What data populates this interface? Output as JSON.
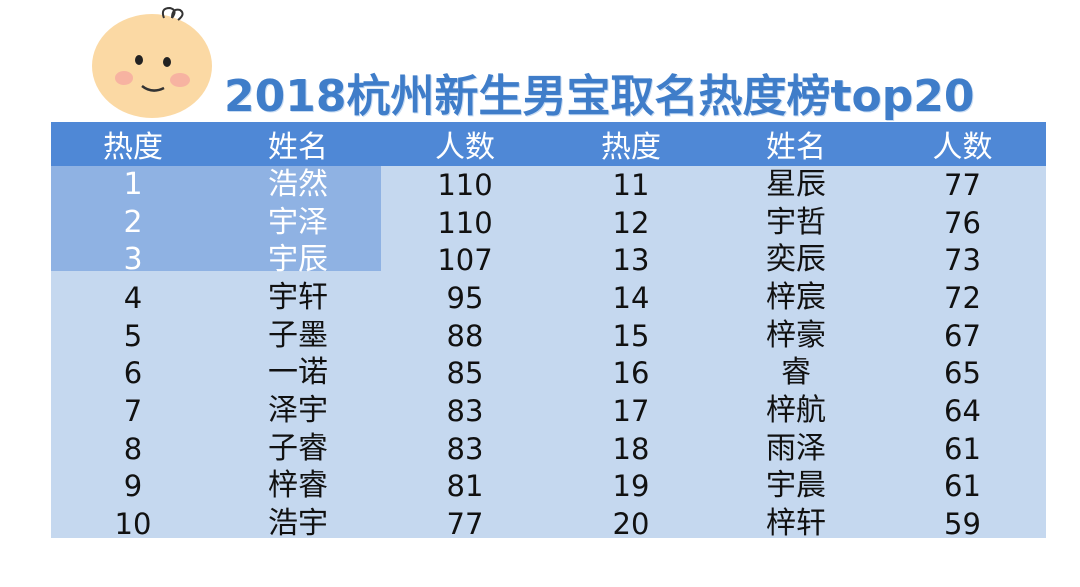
{
  "title": "2018杭州新生男宝取名热度榜top20",
  "logo_icon": "baby-face-icon",
  "colors": {
    "header_bg": "#4f88d6",
    "row_bg": "#c5d8ef",
    "highlight_bg": "#8fb2e3",
    "title": "#3f7dc9"
  },
  "table": {
    "headers": [
      "热度",
      "姓名",
      "人数",
      "热度",
      "姓名",
      "人数"
    ],
    "rows": [
      {
        "r1": "1",
        "n1": "浩然",
        "c1": "110",
        "r2": "11",
        "n2": "星辰",
        "c2": "77"
      },
      {
        "r1": "2",
        "n1": "宇泽",
        "c1": "110",
        "r2": "12",
        "n2": "宇哲",
        "c2": "76"
      },
      {
        "r1": "3",
        "n1": "宇辰",
        "c1": "107",
        "r2": "13",
        "n2": "奕辰",
        "c2": "73"
      },
      {
        "r1": "4",
        "n1": "宇轩",
        "c1": "95",
        "r2": "14",
        "n2": "梓宸",
        "c2": "72"
      },
      {
        "r1": "5",
        "n1": "子墨",
        "c1": "88",
        "r2": "15",
        "n2": "梓豪",
        "c2": "67"
      },
      {
        "r1": "6",
        "n1": "一诺",
        "c1": "85",
        "r2": "16",
        "n2": "睿",
        "c2": "65"
      },
      {
        "r1": "7",
        "n1": "泽宇",
        "c1": "83",
        "r2": "17",
        "n2": "梓航",
        "c2": "64"
      },
      {
        "r1": "8",
        "n1": "子睿",
        "c1": "83",
        "r2": "18",
        "n2": "雨泽",
        "c2": "61"
      },
      {
        "r1": "9",
        "n1": "梓睿",
        "c1": "81",
        "r2": "19",
        "n2": "宇晨",
        "c2": "61"
      },
      {
        "r1": "10",
        "n1": "浩宇",
        "c1": "77",
        "r2": "20",
        "n2": "梓轩",
        "c2": "59"
      }
    ]
  }
}
